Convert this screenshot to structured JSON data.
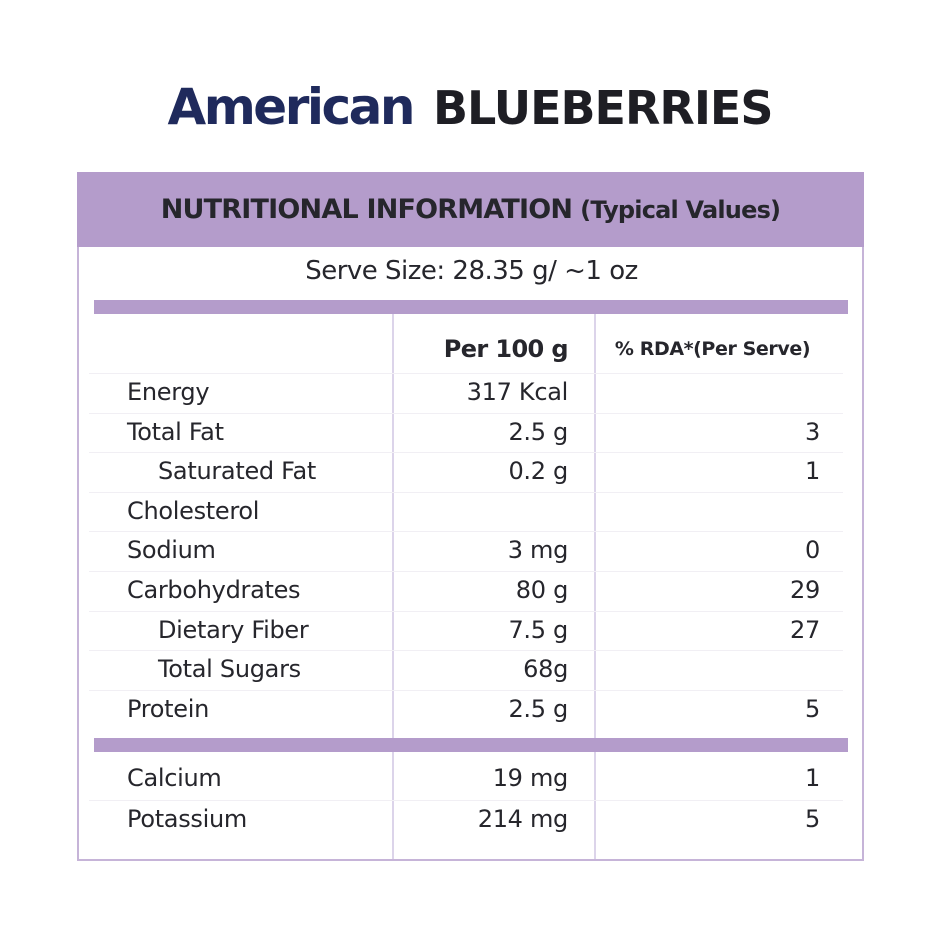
{
  "title": {
    "brand": "American",
    "product": "BLUEBERRIES"
  },
  "panel": {
    "heading": "NUTRITIONAL INFORMATION",
    "heading_sub": "(Typical Values)",
    "serve_size": "Serve Size: 28.35 g/ ~1 oz",
    "columns": {
      "per_100g": "Per 100 g",
      "rda": "% RDA*(Per Serve)"
    },
    "nutrients": [
      {
        "name": "Energy",
        "per_100g": "317 Kcal",
        "rda": "",
        "indent": false
      },
      {
        "name": "Total Fat",
        "per_100g": "2.5 g",
        "rda": "3",
        "indent": false
      },
      {
        "name": "Saturated Fat",
        "per_100g": "0.2 g",
        "rda": "1",
        "indent": true
      },
      {
        "name": "Cholesterol",
        "per_100g": "",
        "rda": "",
        "indent": false
      },
      {
        "name": "Sodium",
        "per_100g": "3 mg",
        "rda": "0",
        "indent": false
      },
      {
        "name": "Carbohydrates",
        "per_100g": "80 g",
        "rda": "29",
        "indent": false
      },
      {
        "name": "Dietary Fiber",
        "per_100g": "7.5 g",
        "rda": "27",
        "indent": true
      },
      {
        "name": "Total Sugars",
        "per_100g": "68g",
        "rda": "",
        "indent": true
      },
      {
        "name": "Protein",
        "per_100g": "2.5 g",
        "rda": "5",
        "indent": false
      }
    ],
    "minerals": [
      {
        "name": "Calcium",
        "per_100g": "19 mg",
        "rda": "1"
      },
      {
        "name": "Potassium",
        "per_100g": "214 mg",
        "rda": "5"
      }
    ]
  },
  "colors": {
    "brand_navy": "#1f2a5c",
    "header_purple": "#b49ccb",
    "border_lavender": "#c6b4d8",
    "text_dark": "#26262c"
  }
}
